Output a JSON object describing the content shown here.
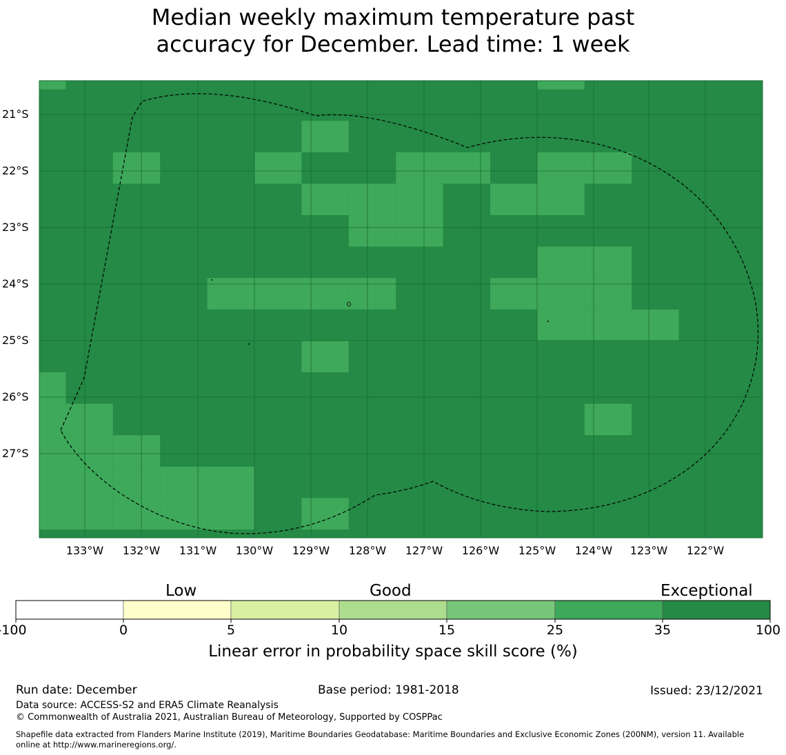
{
  "title_line1": "Median weekly maximum temperature past",
  "title_line2": "accuracy for December. Lead time: 1 week",
  "map": {
    "lon_labels": [
      "133°W",
      "132°W",
      "131°W",
      "130°W",
      "129°W",
      "128°W",
      "127°W",
      "126°W",
      "125°W",
      "124°W",
      "123°W",
      "122°W"
    ],
    "lat_labels": [
      "21°S",
      "22°S",
      "23°S",
      "24°S",
      "25°S",
      "26°S",
      "27°S"
    ],
    "colors": {
      "exceptional": "#248a45",
      "high": "#3ea95a"
    },
    "cell_grid": {
      "columns": 15,
      "rows": 15,
      "high_skill_cells": [
        [
          0,
          0
        ],
        [
          11,
          0
        ],
        [
          6,
          2
        ],
        [
          2,
          3
        ],
        [
          5,
          3
        ],
        [
          8,
          3
        ],
        [
          9,
          3
        ],
        [
          11,
          3
        ],
        [
          12,
          3
        ],
        [
          6,
          4
        ],
        [
          7,
          4
        ],
        [
          8,
          4
        ],
        [
          10,
          4
        ],
        [
          11,
          4
        ],
        [
          7,
          5
        ],
        [
          8,
          5
        ],
        [
          11,
          6
        ],
        [
          12,
          6
        ],
        [
          4,
          7
        ],
        [
          5,
          7
        ],
        [
          6,
          7
        ],
        [
          7,
          7
        ],
        [
          10,
          7
        ],
        [
          11,
          7
        ],
        [
          12,
          7
        ],
        [
          11,
          8
        ],
        [
          12,
          8
        ],
        [
          13,
          8
        ],
        [
          6,
          9
        ],
        [
          0,
          10
        ],
        [
          0,
          11
        ],
        [
          1,
          11
        ],
        [
          12,
          11
        ],
        [
          0,
          12
        ],
        [
          1,
          12
        ],
        [
          2,
          12
        ],
        [
          0,
          13
        ],
        [
          1,
          13
        ],
        [
          2,
          13
        ],
        [
          3,
          13
        ],
        [
          4,
          13
        ],
        [
          0,
          14
        ],
        [
          1,
          14
        ],
        [
          2,
          14
        ],
        [
          3,
          14
        ],
        [
          4,
          14
        ],
        [
          6,
          14
        ]
      ]
    }
  },
  "colorbar": {
    "categories": [
      "Low",
      "Good",
      "Exceptional"
    ],
    "ticks": [
      "-100",
      "0",
      "5",
      "10",
      "15",
      "25",
      "35",
      "100"
    ],
    "colors": [
      "#ffffff",
      "#ffffcc",
      "#d9f0a3",
      "#addd8e",
      "#78c679",
      "#3ea95a",
      "#248a45"
    ],
    "label": "Linear error in probability space skill score (%)"
  },
  "footer": {
    "run_date": "Run date: December",
    "base_period": "Base period: 1981-2018",
    "issued": "Issued: 23/12/2021",
    "data_source": "Data source: ACCESS-S2 and ERA5 Climate Reanalysis",
    "copyright": "© Commonwealth of Australia 2021, Australian Bureau of Meteorology, Supported by COSPPac",
    "shapefile_line1": "Shapefile data extracted from Flanders Marine Institute (2019), Maritime Boundaries Geodatabase: Maritime Boundaries and Exclusive Economic Zones (200NM), version 11. Available",
    "shapefile_line2": "online at http://www.marineregions.org/."
  }
}
